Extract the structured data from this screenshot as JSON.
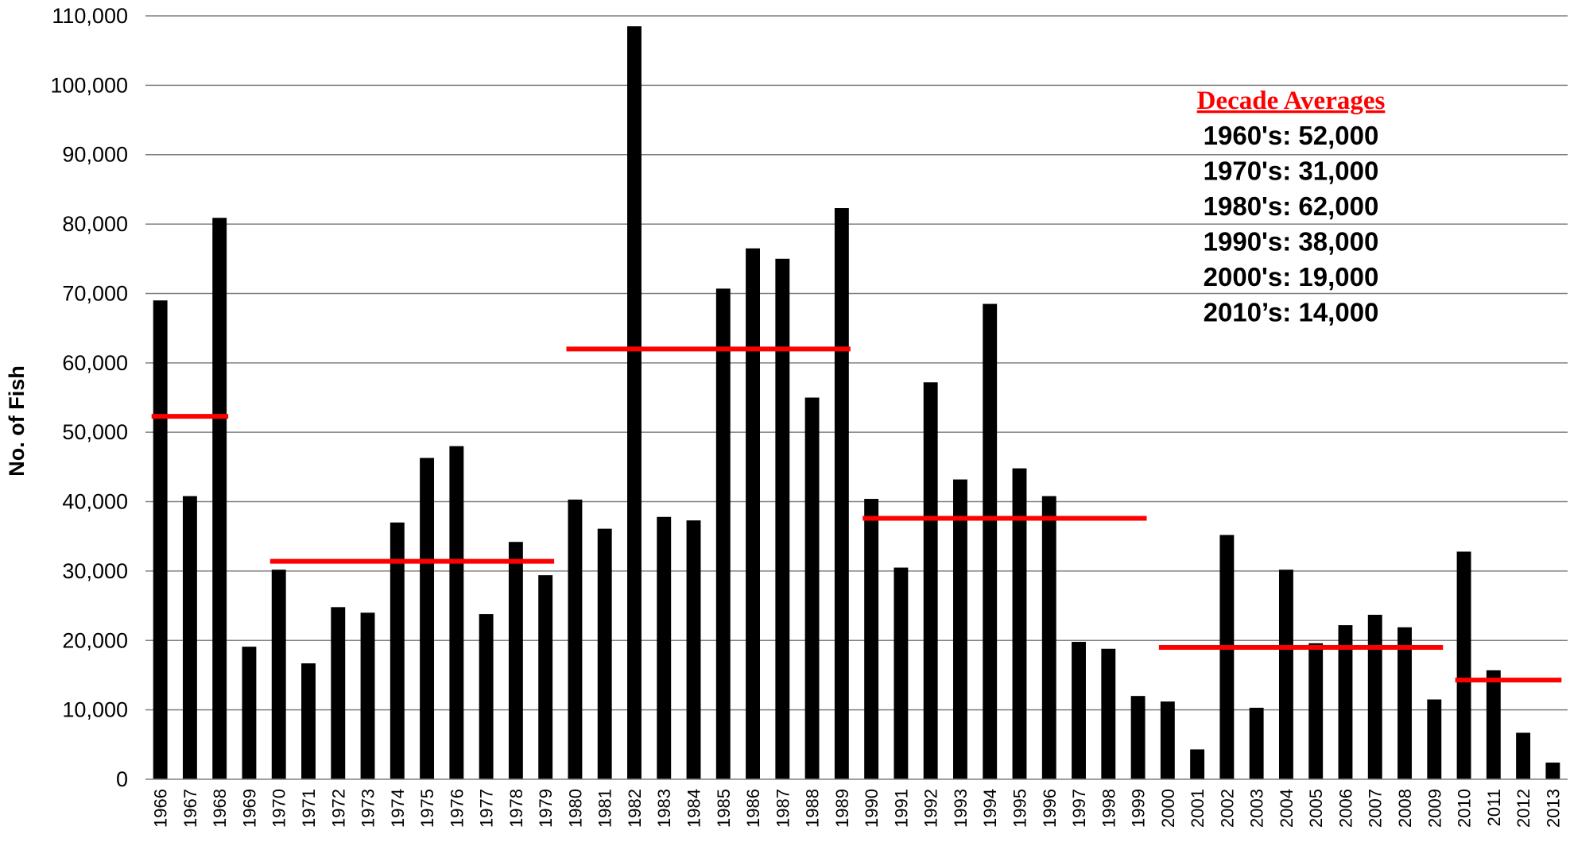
{
  "chart_data": {
    "type": "bar",
    "title": "",
    "xlabel": "",
    "ylabel": "No. of Fish",
    "ylim": [
      0,
      110000
    ],
    "y_ticks": [
      "0",
      "10,000",
      "20,000",
      "30,000",
      "40,000",
      "50,000",
      "60,000",
      "70,000",
      "80,000",
      "90,000",
      "100,000",
      "110,000"
    ],
    "y_tick_values": [
      0,
      10000,
      20000,
      30000,
      40000,
      50000,
      60000,
      70000,
      80000,
      90000,
      100000,
      110000
    ],
    "grid": true,
    "categories": [
      "1966",
      "1967",
      "1968",
      "1969",
      "1970",
      "1971",
      "1972",
      "1973",
      "1974",
      "1975",
      "1976",
      "1977",
      "1978",
      "1979",
      "1980",
      "1981",
      "1982",
      "1983",
      "1984",
      "1985",
      "1986",
      "1987",
      "1988",
      "1989",
      "1990",
      "1991",
      "1992",
      "1993",
      "1994",
      "1995",
      "1996",
      "1997",
      "1998",
      "1999",
      "2000",
      "2001",
      "2002",
      "2003",
      "2004",
      "2005",
      "2006",
      "2007",
      "2008",
      "2009",
      "2010",
      "2011",
      "2012",
      "2013"
    ],
    "values": [
      69000,
      40800,
      80900,
      19100,
      30200,
      16700,
      24800,
      24000,
      37000,
      46300,
      48000,
      23800,
      34200,
      29400,
      40300,
      36100,
      108500,
      37800,
      37300,
      70700,
      76500,
      75000,
      55000,
      82300,
      40400,
      30500,
      57200,
      43200,
      68500,
      44800,
      40800,
      19800,
      18800,
      12000,
      11200,
      4300,
      35200,
      10300,
      30200,
      19600,
      22200,
      23700,
      21900,
      11500,
      32800,
      15700,
      6700,
      2400
    ],
    "colors": {
      "bar": "#000000",
      "average_line": "#ff0000",
      "grid": "#808080",
      "legend_title": "#ff0000"
    },
    "decade_averages": [
      {
        "start": "1966",
        "end": "1968",
        "value": 52300
      },
      {
        "start": "1970",
        "end": "1979",
        "value": 31400
      },
      {
        "start": "1980",
        "end": "1989",
        "value": 62000
      },
      {
        "start": "1990",
        "end": "1999",
        "value": 37600
      },
      {
        "start": "2000",
        "end": "2009",
        "value": 19000
      },
      {
        "start": "2010",
        "end": "2013",
        "value": 14300
      }
    ],
    "legend": {
      "title": "Decade Averages",
      "lines": [
        "1960's: 52,000",
        "1970's: 31,000",
        "1980's: 62,000",
        "1990's: 38,000",
        "2000's: 19,000",
        "2010’s: 14,000"
      ],
      "placement": "top-right"
    }
  }
}
